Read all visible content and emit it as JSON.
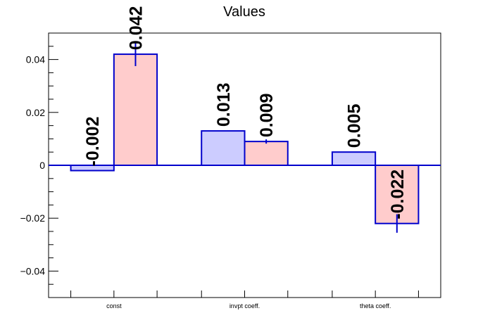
{
  "chart_data": {
    "type": "bar",
    "title": "Values",
    "xlabel": "",
    "ylabel": "",
    "ylim": [
      -0.05,
      0.05
    ],
    "yticks": [
      -0.04,
      -0.02,
      0,
      0.02,
      0.04
    ],
    "ytick_labels": [
      "−0.04",
      "−0.02",
      "0",
      "0.02",
      "0.04"
    ],
    "categories": [
      "const",
      "invpt coeff.",
      "theta coeff."
    ],
    "series": [
      {
        "values": [
          -0.002,
          0.013,
          0.005
        ],
        "errors": [
          0.0,
          0.0,
          0.0
        ],
        "labels": [
          "-0.002",
          "0.013",
          "0.005"
        ],
        "fill": "#ccccff"
      },
      {
        "values": [
          0.042,
          0.009,
          -0.022
        ],
        "errors": [
          0.0045,
          0.0008,
          0.0035
        ],
        "labels": [
          "0.042",
          "0.009",
          "-0.022"
        ],
        "fill": "#ffcccc"
      }
    ],
    "grid": false,
    "legend": "none",
    "colors": {
      "bar_edge": "#0000cc",
      "zero_line": "#0000cc",
      "axis": "#000000",
      "label": "#000000"
    }
  }
}
